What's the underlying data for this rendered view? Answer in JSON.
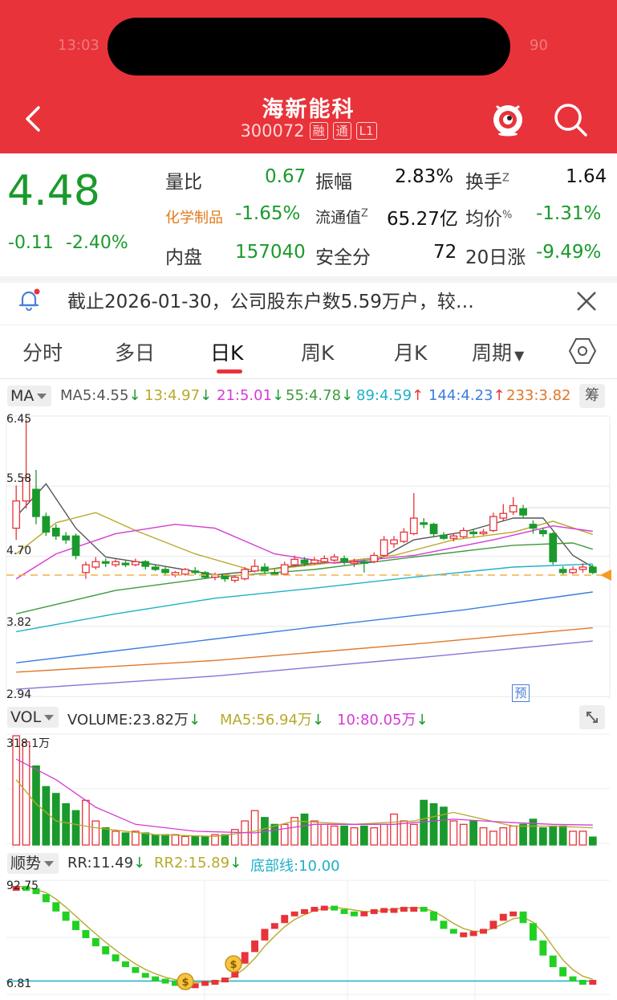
{
  "header": {
    "stock_name": "海新能科",
    "stock_code": "300072",
    "tags": [
      "融",
      "通",
      "L1"
    ],
    "status_left": "13:03",
    "status_right": "90"
  },
  "quote": {
    "price": "4.48",
    "change": "-0.11",
    "change_pct": "-2.40%",
    "sector": "化学制品",
    "sector_change": "-1.65%",
    "fields": [
      {
        "label": "量比",
        "value": "0.67"
      },
      {
        "label": "振幅",
        "value": "2.83%"
      },
      {
        "label": "换手",
        "sup": "Z",
        "value": "1.64"
      },
      {
        "label": "流通值",
        "sup": "Z",
        "value": "65.27亿"
      },
      {
        "label": "均价",
        "sup": "%",
        "value": "-1.31%"
      },
      {
        "label": "内盘",
        "value": "157040"
      },
      {
        "label": "安全分",
        "value": "72"
      },
      {
        "label": "20日涨",
        "value": "-9.49%"
      }
    ]
  },
  "notice": {
    "text": "截止2026-01-30，公司股东户数5.59万户，较…"
  },
  "tabs": [
    "分时",
    "多日",
    "日K",
    "周K",
    "月K",
    "周期"
  ],
  "ma_header": {
    "selector": "MA",
    "items": [
      {
        "text": "MA5:4.55",
        "arrow": "↓",
        "color": "#555555"
      },
      {
        "text": "13:4.97",
        "arrow": "↓",
        "color": "#b8a92a"
      },
      {
        "text": "21:5.01",
        "arrow": "↓",
        "color": "#d63ad6"
      },
      {
        "text": "55:4.78",
        "arrow": "↓",
        "color": "#3e9b3e"
      },
      {
        "text": "89:4.59",
        "arrow": "↑",
        "color": "#1fb0c8"
      },
      {
        "text": "144:4.23",
        "arrow": "↑",
        "color": "#3a7de0"
      },
      {
        "text": "233:3.82",
        "arrow": "",
        "color": "#e0762a"
      }
    ],
    "chip_label": "筹"
  },
  "price_axis": {
    "top": "6.45",
    "upper": "5.58",
    "mid": "4.70",
    "lower": "3.82",
    "bottom": "2.94"
  },
  "forecast_label": "预",
  "vol_header": {
    "selector": "VOL",
    "items": [
      {
        "text": "VOLUME:23.82万",
        "arrow": "↓",
        "color": "#333333"
      },
      {
        "text": "MA5:56.94万",
        "arrow": "↓",
        "color": "#b8a92a"
      },
      {
        "text": "10:80.05万",
        "arrow": "↓",
        "color": "#d63ad6"
      }
    ],
    "axis_top": "318.1万"
  },
  "trend_header": {
    "selector": "顺势",
    "items": [
      {
        "text": "RR:11.49",
        "arrow": "↓",
        "color": "#333333"
      },
      {
        "text": "RR2:15.89",
        "arrow": "↓",
        "color": "#b8a92a"
      },
      {
        "text": "底部线:10.00",
        "arrow": "",
        "color": "#1fb0c8"
      }
    ],
    "axis_top": "92.75",
    "axis_bottom": "6.81"
  },
  "colors": {
    "up": "#e8333a",
    "down": "#1a9a2c",
    "brand": "#e8333a"
  }
}
